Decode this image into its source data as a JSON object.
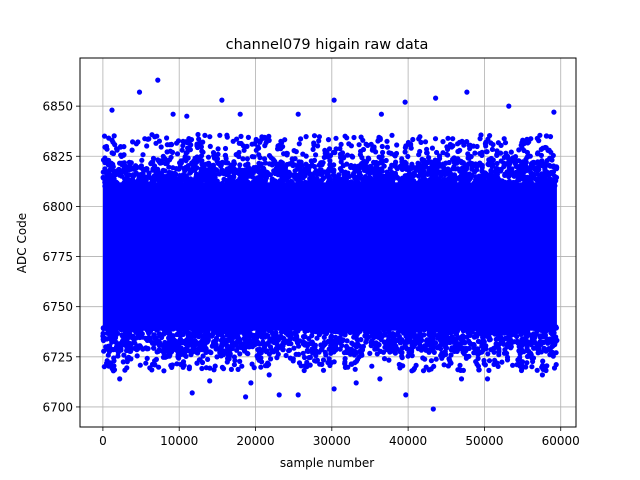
{
  "chart_data": {
    "type": "scatter",
    "title": "channel079 higain raw data",
    "xlabel": "sample number",
    "ylabel": "ADC Code",
    "xlim": [
      -3000,
      62000
    ],
    "ylim": [
      6690,
      6874
    ],
    "x_ticks": [
      0,
      10000,
      20000,
      30000,
      40000,
      50000,
      60000
    ],
    "x_tick_labels": [
      "0",
      "10000",
      "20000",
      "30000",
      "40000",
      "50000",
      "60000"
    ],
    "y_ticks": [
      6700,
      6725,
      6750,
      6775,
      6800,
      6825,
      6850
    ],
    "y_tick_labels": [
      "6700",
      "6725",
      "6750",
      "6775",
      "6800",
      "6825",
      "6850"
    ],
    "grid": true,
    "marker_color": "#0000ff",
    "series": [
      {
        "x_range": [
          0,
          59500
        ],
        "dense_band": [
          6731,
          6818
        ],
        "band_fill": [
          6738,
          6812
        ],
        "outlier_points": [
          [
            7200,
            6863
          ],
          [
            4800,
            6857
          ],
          [
            30300,
            6853
          ],
          [
            15600,
            6853
          ],
          [
            43600,
            6854
          ],
          [
            47700,
            6857
          ],
          [
            39600,
            6852
          ],
          [
            53200,
            6850
          ],
          [
            59100,
            6847
          ],
          [
            1200,
            6848
          ],
          [
            9200,
            6846
          ],
          [
            25600,
            6846
          ],
          [
            36500,
            6846
          ],
          [
            11000,
            6845
          ],
          [
            18000,
            6846
          ],
          [
            43300,
            6699
          ],
          [
            18700,
            6705
          ],
          [
            23100,
            6706
          ],
          [
            30300,
            6709
          ],
          [
            25600,
            6706
          ],
          [
            39700,
            6706
          ],
          [
            11700,
            6707
          ],
          [
            14000,
            6713
          ],
          [
            19400,
            6712
          ],
          [
            2200,
            6714
          ],
          [
            33200,
            6712
          ],
          [
            36300,
            6714
          ],
          [
            47000,
            6714
          ],
          [
            50400,
            6714
          ],
          [
            57600,
            6716
          ],
          [
            1000,
            6721
          ],
          [
            8000,
            6718
          ],
          [
            21800,
            6716
          ],
          [
            40500,
            6718
          ],
          [
            55100,
            6720
          ]
        ]
      }
    ]
  }
}
